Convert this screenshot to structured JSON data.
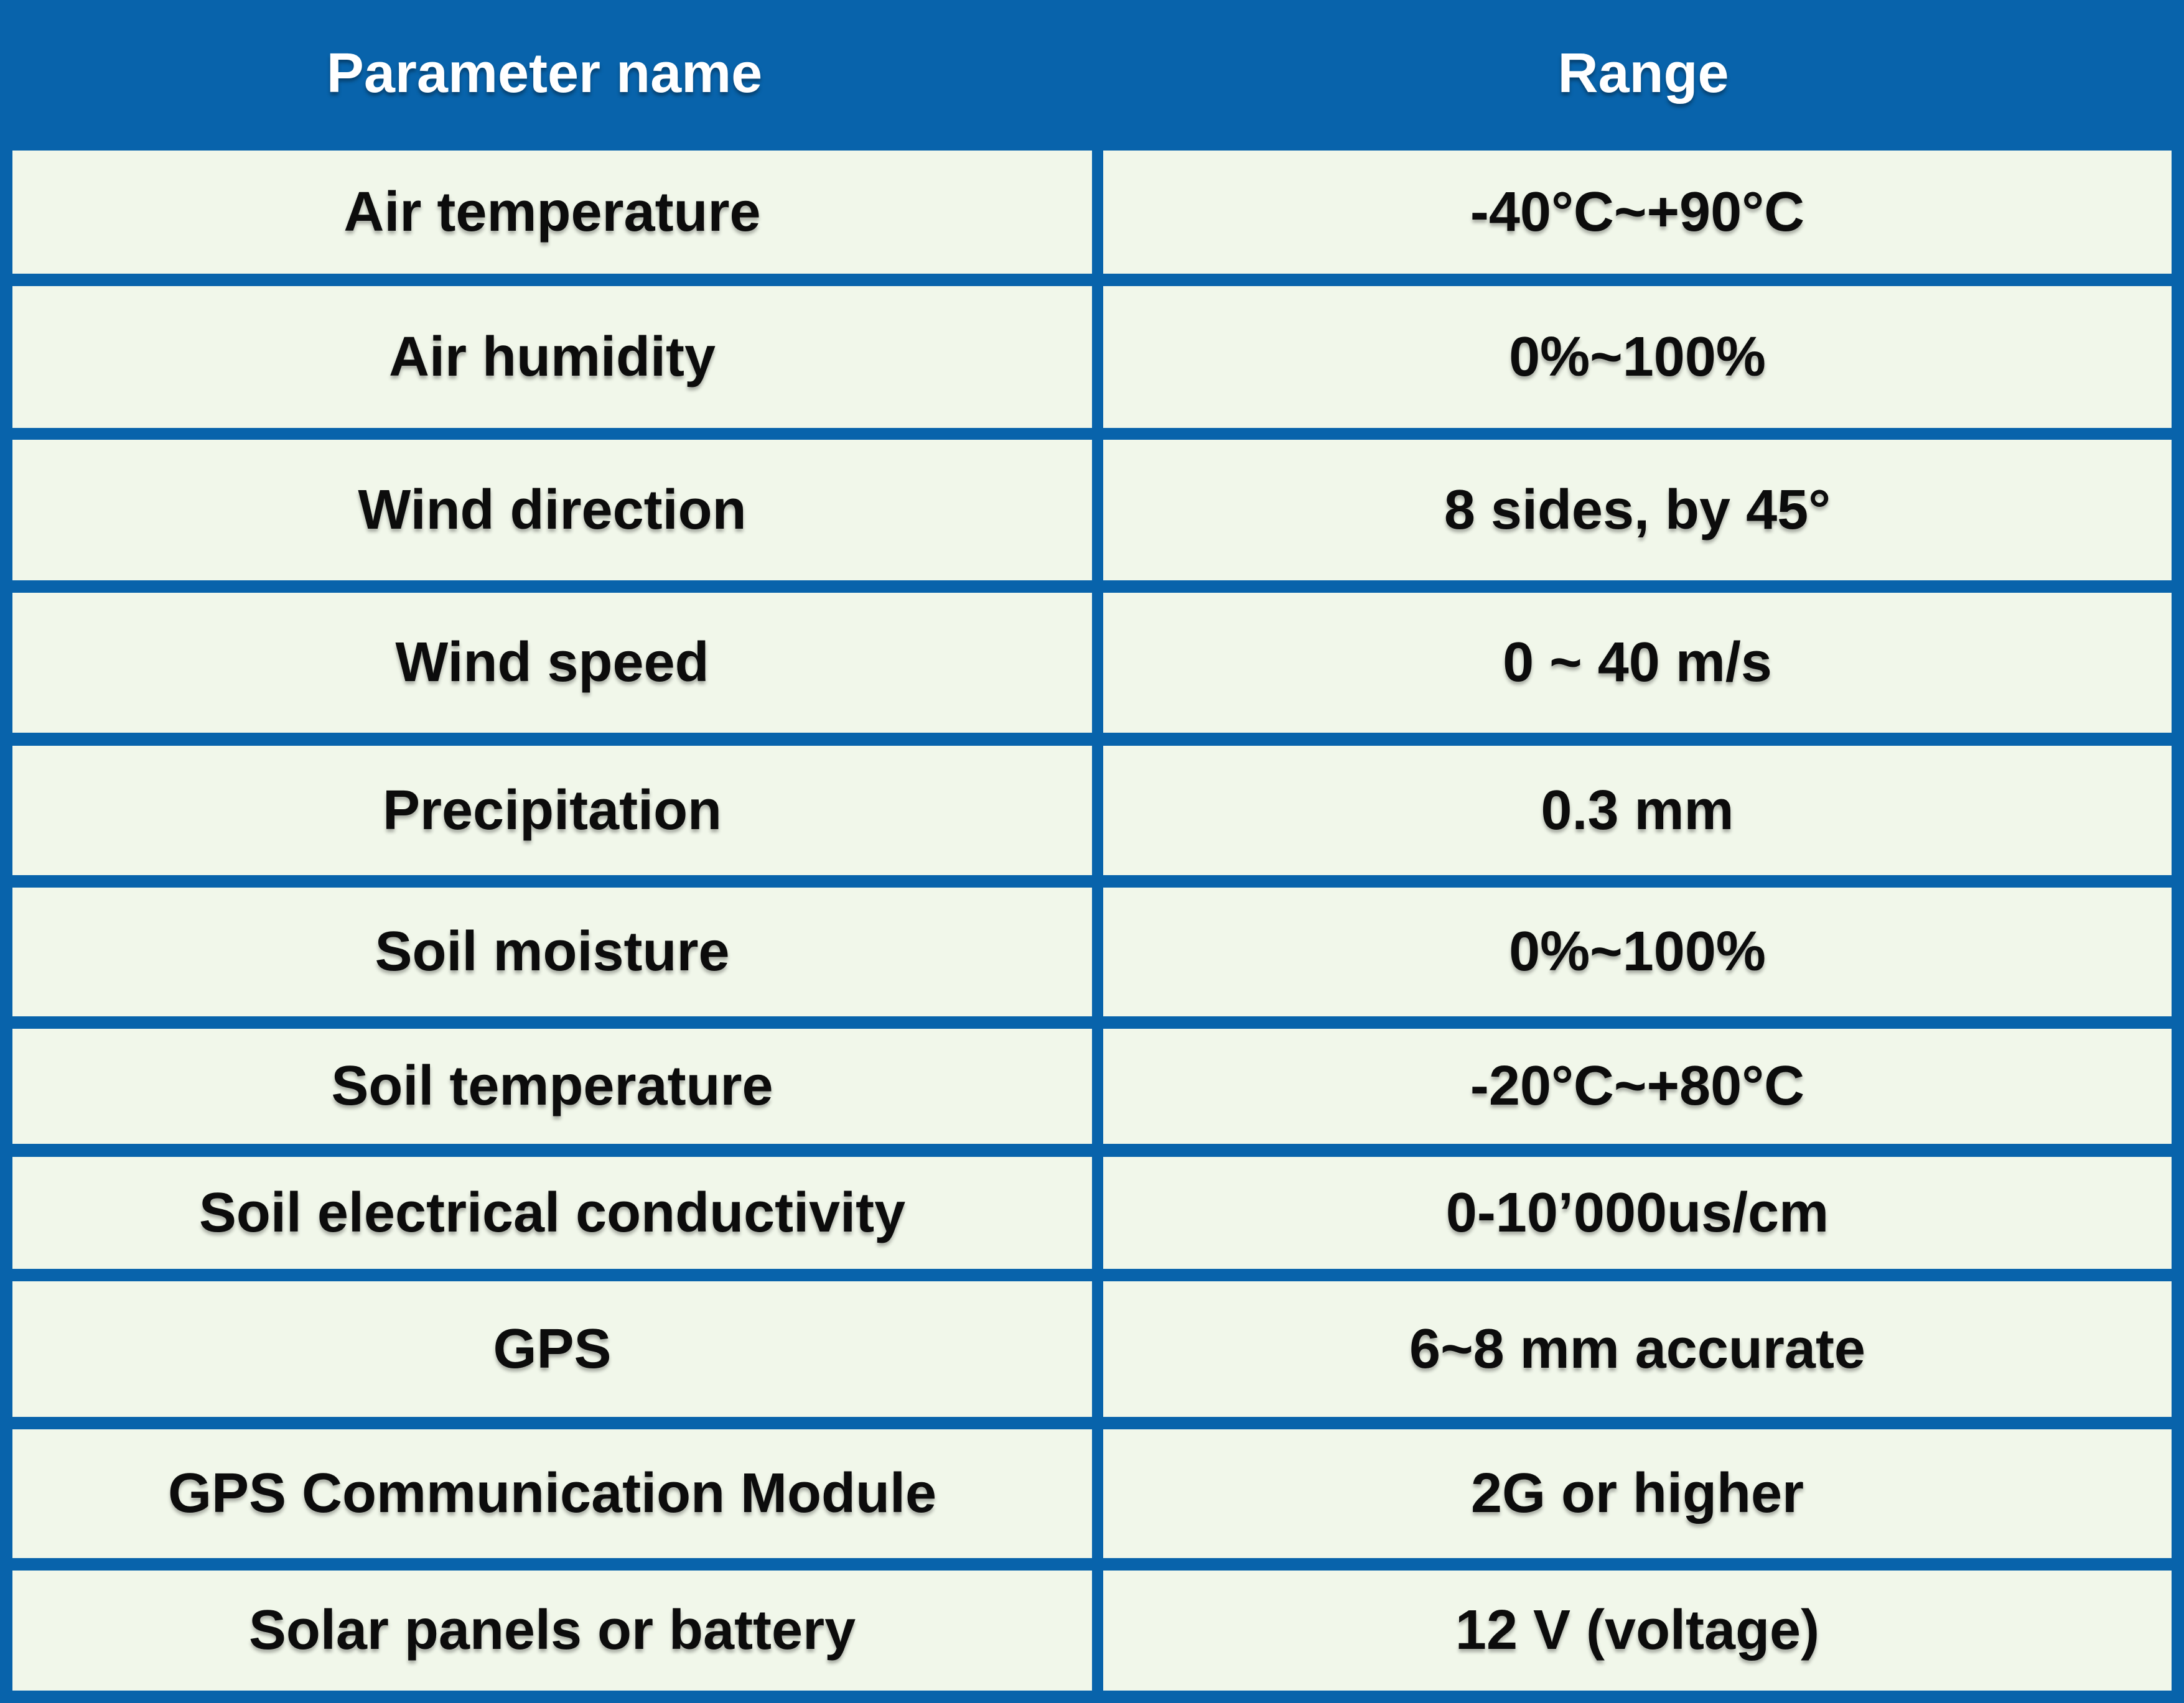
{
  "table": {
    "headers": [
      "Parameter name",
      "Range"
    ],
    "rows": [
      {
        "parameter": "Air temperature",
        "range": "-40°C~+90°C"
      },
      {
        "parameter": "Air humidity",
        "range": "0%~100%"
      },
      {
        "parameter": "Wind direction",
        "range": "8 sides, by 45°"
      },
      {
        "parameter": "Wind speed",
        "range": "0 ~ 40 m/s"
      },
      {
        "parameter": "Precipitation",
        "range": "0.3 mm"
      },
      {
        "parameter": "Soil moisture",
        "range": "0%~100%"
      },
      {
        "parameter": "Soil temperature",
        "range": "-20°C~+80°C"
      },
      {
        "parameter": "Soil electrical conductivity",
        "range": "0-10’000us/cm"
      },
      {
        "parameter": "GPS",
        "range": "6~8 mm accurate"
      },
      {
        "parameter": "GPS Communication Module",
        "range": "2G or higher"
      },
      {
        "parameter": "Solar panels or battery",
        "range": "12 V (voltage)"
      }
    ]
  },
  "colors": {
    "header_background": "#0863ab",
    "cell_background": "#f1f7ea",
    "header_text": "#ffffff",
    "cell_text": "#0c0c0c"
  }
}
